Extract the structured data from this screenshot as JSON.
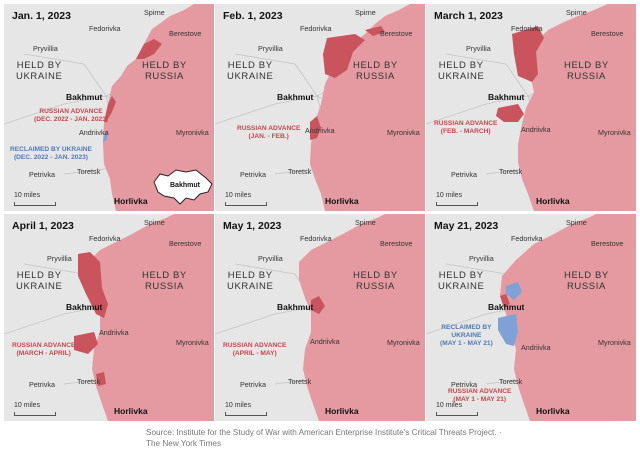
{
  "colors": {
    "russia": "#e49aa0",
    "advance": "#c9545e",
    "reclaimed": "#7ea2d6",
    "ukraine_bg": "#e6e6e6",
    "roads": "#bfbfbf"
  },
  "common": {
    "held_by_ukraine": [
      "HELD BY",
      "UKRAINE"
    ],
    "held_by_russia": [
      "HELD BY",
      "RUSSIA"
    ],
    "scale": "10 miles",
    "cities": {
      "spirne": "Spirne",
      "fedorivka": "Fedorivka",
      "berestove": "Berestove",
      "pryvillia": "Pryvillia",
      "bakhmut": "Bakhmut",
      "andriivka": "Andriivka",
      "myronivka": "Myronivka",
      "petrivka": "Petrivka",
      "toretsk": "Toretsk",
      "horlivka": "Horlivka"
    }
  },
  "panels": [
    {
      "date": "Jan. 1, 2023",
      "advance": [
        "RUSSIAN ADVANCE",
        "(DEC. 2022 - JAN. 2023)"
      ],
      "reclaimed": [
        "RECLAIMED BY UKRAINE",
        "(DEC. 2022 - JAN. 2023)"
      ],
      "inset": "Bakhmut"
    },
    {
      "date": "Feb. 1, 2023",
      "advance": [
        "RUSSIAN ADVANCE",
        "(JAN. - FEB.)"
      ]
    },
    {
      "date": "March 1, 2023",
      "advance": [
        "RUSSIAN ADVANCE",
        "(FEB. - MARCH)"
      ]
    },
    {
      "date": "April 1, 2023",
      "advance": [
        "RUSSIAN ADVANCE",
        "(MARCH - APRIL)"
      ]
    },
    {
      "date": "May 1, 2023",
      "advance": [
        "RUSSIAN ADVANCE",
        "(APRIL - MAY)"
      ]
    },
    {
      "date": "May 21, 2023",
      "advance": [
        "RUSSIAN ADVANCE",
        "(MAY 1 - MAY 21)"
      ],
      "reclaimed": [
        "RECLAIMED BY",
        "UKRAINE",
        "(MAY 1 - MAY 21)"
      ]
    }
  ],
  "source": "Source: Institute for the Study of War with American Enterprise Institute's Critical Threats Project.  ·  The New York Times"
}
